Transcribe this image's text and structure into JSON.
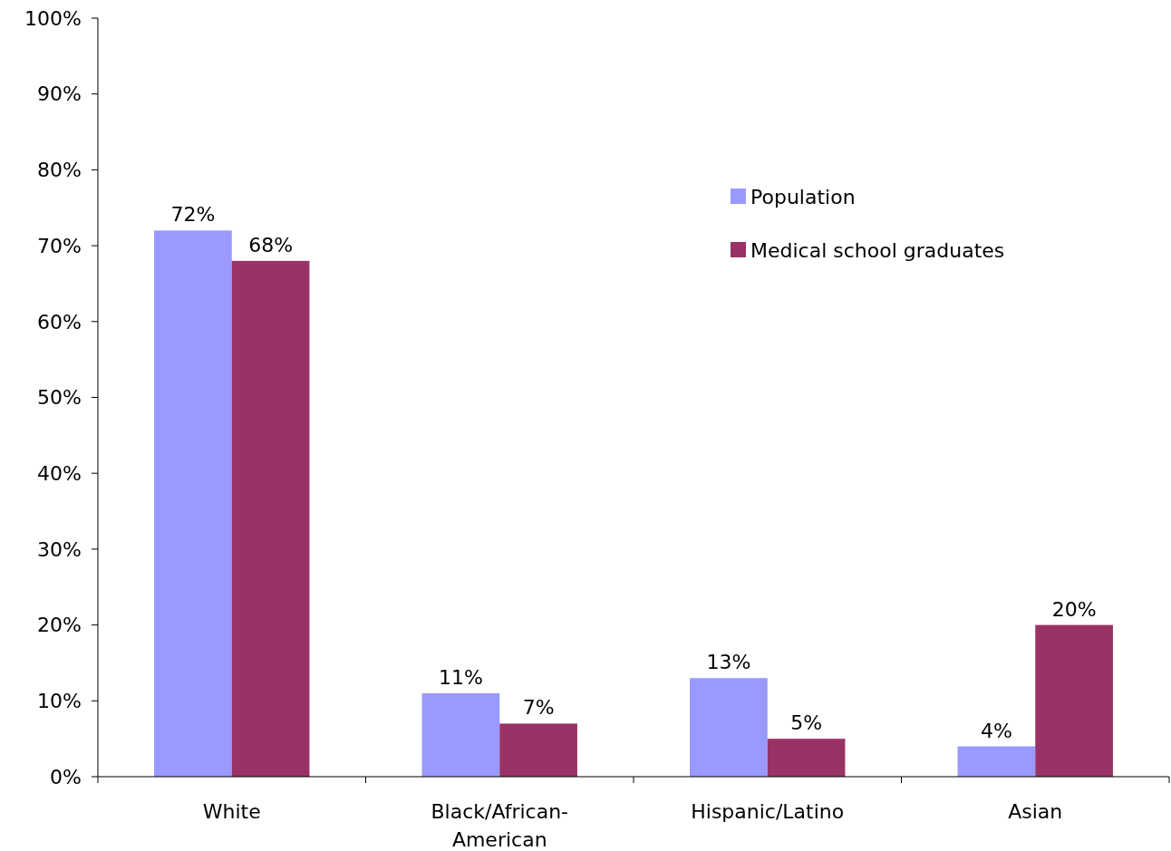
{
  "chart_data": {
    "type": "bar",
    "categories": [
      "White",
      "Black/African-American",
      "Hispanic/Latino",
      "Asian"
    ],
    "series": [
      {
        "name": "Population",
        "color": "#9999ff",
        "values": [
          72,
          11,
          13,
          4
        ]
      },
      {
        "name": "Medical school graduates",
        "color": "#993366",
        "values": [
          68,
          7,
          5,
          20
        ]
      }
    ],
    "ylim": [
      0,
      100
    ],
    "yticks": [
      {
        "value": 0,
        "label": "0%"
      },
      {
        "value": 10,
        "label": "10%"
      },
      {
        "value": 20,
        "label": "20%"
      },
      {
        "value": 30,
        "label": "30%"
      },
      {
        "value": 40,
        "label": "40%"
      },
      {
        "value": 50,
        "label": "50%"
      },
      {
        "value": 60,
        "label": "60%"
      },
      {
        "value": 70,
        "label": "70%"
      },
      {
        "value": 80,
        "label": "80%"
      },
      {
        "value": 90,
        "label": "90%"
      },
      {
        "value": 100,
        "label": "100%"
      }
    ],
    "value_labels": [
      [
        "72%",
        "11%",
        "13%",
        "4%"
      ],
      [
        "68%",
        "7%",
        "5%",
        "20%"
      ]
    ],
    "legend": "top right",
    "grid": false
  }
}
